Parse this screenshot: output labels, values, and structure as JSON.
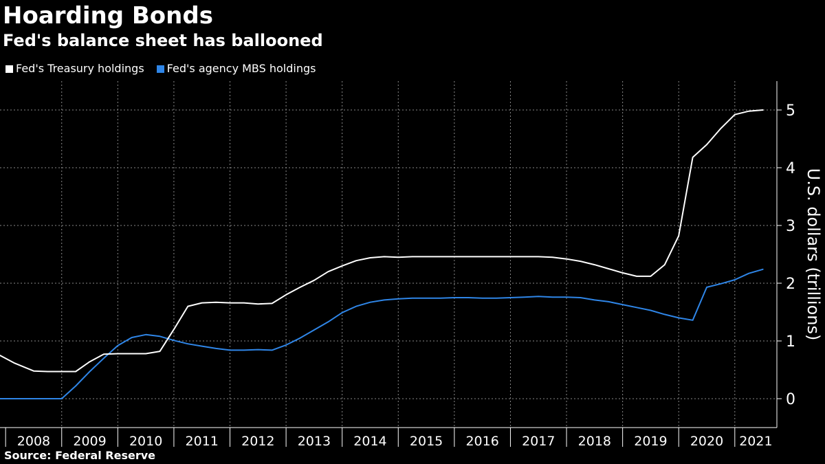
{
  "header": {
    "title": "Hoarding Bonds",
    "subtitle": "Fed's balance sheet has ballooned"
  },
  "footer": {
    "source": "Source: Federal Reserve"
  },
  "colors": {
    "background": "#000000",
    "treasury": "#ffffff",
    "mbs": "#2f86e8",
    "grid": "#8a8a8a",
    "text": "#ffffff"
  },
  "chart_data": {
    "type": "line",
    "title": "Hoarding Bonds",
    "subtitle": "Fed's balance sheet has ballooned",
    "xlabel": "",
    "ylabel": "U.S. dollars (trillions)",
    "xlim": [
      2007.9,
      2021.75
    ],
    "ylim": [
      -0.5,
      5.5
    ],
    "x_ticks": [
      "2008",
      "2009",
      "2010",
      "2011",
      "2012",
      "2013",
      "2014",
      "2015",
      "2016",
      "2017",
      "2018",
      "2019",
      "2020",
      "2021"
    ],
    "y_ticks": [
      0,
      1,
      2,
      3,
      4,
      5
    ],
    "grid": true,
    "legend_position": "top-left",
    "series": [
      {
        "name": "Fed's Treasury holdings",
        "color": "#ffffff",
        "x": [
          2007.9,
          2008.15,
          2008.5,
          2008.75,
          2009.0,
          2009.25,
          2009.5,
          2009.75,
          2010.0,
          2010.25,
          2010.5,
          2010.75,
          2011.0,
          2011.25,
          2011.5,
          2011.75,
          2012.0,
          2012.25,
          2012.5,
          2012.75,
          2013.0,
          2013.25,
          2013.5,
          2013.75,
          2014.0,
          2014.25,
          2014.5,
          2014.75,
          2015.0,
          2015.25,
          2015.5,
          2015.75,
          2016.0,
          2016.25,
          2016.5,
          2016.75,
          2017.0,
          2017.25,
          2017.5,
          2017.75,
          2018.0,
          2018.25,
          2018.5,
          2018.75,
          2019.0,
          2019.25,
          2019.5,
          2019.75,
          2020.0,
          2020.25,
          2020.5,
          2020.75,
          2021.0,
          2021.25,
          2021.5
        ],
        "values": [
          0.75,
          0.62,
          0.48,
          0.47,
          0.47,
          0.47,
          0.64,
          0.77,
          0.78,
          0.78,
          0.78,
          0.82,
          1.2,
          1.6,
          1.66,
          1.67,
          1.66,
          1.66,
          1.64,
          1.65,
          1.8,
          1.93,
          2.05,
          2.2,
          2.3,
          2.39,
          2.44,
          2.46,
          2.45,
          2.46,
          2.46,
          2.46,
          2.46,
          2.46,
          2.46,
          2.46,
          2.46,
          2.46,
          2.46,
          2.45,
          2.42,
          2.38,
          2.32,
          2.25,
          2.18,
          2.12,
          2.12,
          2.32,
          2.82,
          4.18,
          4.4,
          4.68,
          4.92,
          4.98,
          5.0
        ]
      },
      {
        "name": "Fed's agency MBS holdings",
        "color": "#2f86e8",
        "x": [
          2007.9,
          2008.15,
          2008.5,
          2008.75,
          2009.0,
          2009.25,
          2009.5,
          2009.75,
          2010.0,
          2010.25,
          2010.5,
          2010.75,
          2011.0,
          2011.25,
          2011.5,
          2011.75,
          2012.0,
          2012.25,
          2012.5,
          2012.75,
          2013.0,
          2013.25,
          2013.5,
          2013.75,
          2014.0,
          2014.25,
          2014.5,
          2014.75,
          2015.0,
          2015.25,
          2015.5,
          2015.75,
          2016.0,
          2016.25,
          2016.5,
          2016.75,
          2017.0,
          2017.25,
          2017.5,
          2017.75,
          2018.0,
          2018.25,
          2018.5,
          2018.75,
          2019.0,
          2019.25,
          2019.5,
          2019.75,
          2020.0,
          2020.25,
          2020.5,
          2020.75,
          2021.0,
          2021.25,
          2021.5
        ],
        "values": [
          0.0,
          0.0,
          0.0,
          0.0,
          0.0,
          0.22,
          0.47,
          0.7,
          0.92,
          1.06,
          1.11,
          1.08,
          1.01,
          0.95,
          0.91,
          0.87,
          0.84,
          0.84,
          0.85,
          0.84,
          0.93,
          1.05,
          1.19,
          1.33,
          1.49,
          1.6,
          1.67,
          1.71,
          1.73,
          1.74,
          1.74,
          1.74,
          1.75,
          1.75,
          1.74,
          1.74,
          1.75,
          1.76,
          1.77,
          1.76,
          1.76,
          1.75,
          1.71,
          1.68,
          1.63,
          1.58,
          1.53,
          1.46,
          1.4,
          1.36,
          1.93,
          1.99,
          2.06,
          2.17,
          2.24
        ]
      }
    ]
  }
}
